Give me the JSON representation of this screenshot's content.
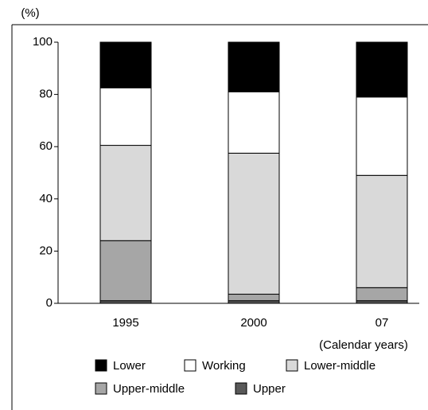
{
  "chart_data": {
    "type": "stacked_bar",
    "y_axis_label": "(%)",
    "x_axis_label": "(Calendar years)",
    "categories": [
      "1995",
      "2000",
      "07"
    ],
    "series": [
      {
        "name": "Lower",
        "color": "#000000",
        "values": [
          17.5,
          19,
          21
        ]
      },
      {
        "name": "Working",
        "color": "#ffffff",
        "values": [
          22,
          23.5,
          30
        ]
      },
      {
        "name": "Lower-middle",
        "color": "#d9d9d9",
        "values": [
          36.5,
          54,
          43
        ]
      },
      {
        "name": "Upper-middle",
        "color": "#a6a6a6",
        "values": [
          23,
          2.5,
          5
        ]
      },
      {
        "name": "Upper",
        "color": "#595959",
        "values": [
          1,
          1,
          1
        ]
      }
    ],
    "ylim": [
      0,
      100
    ],
    "yticks": [
      0,
      20,
      40,
      60,
      80,
      100
    ]
  }
}
